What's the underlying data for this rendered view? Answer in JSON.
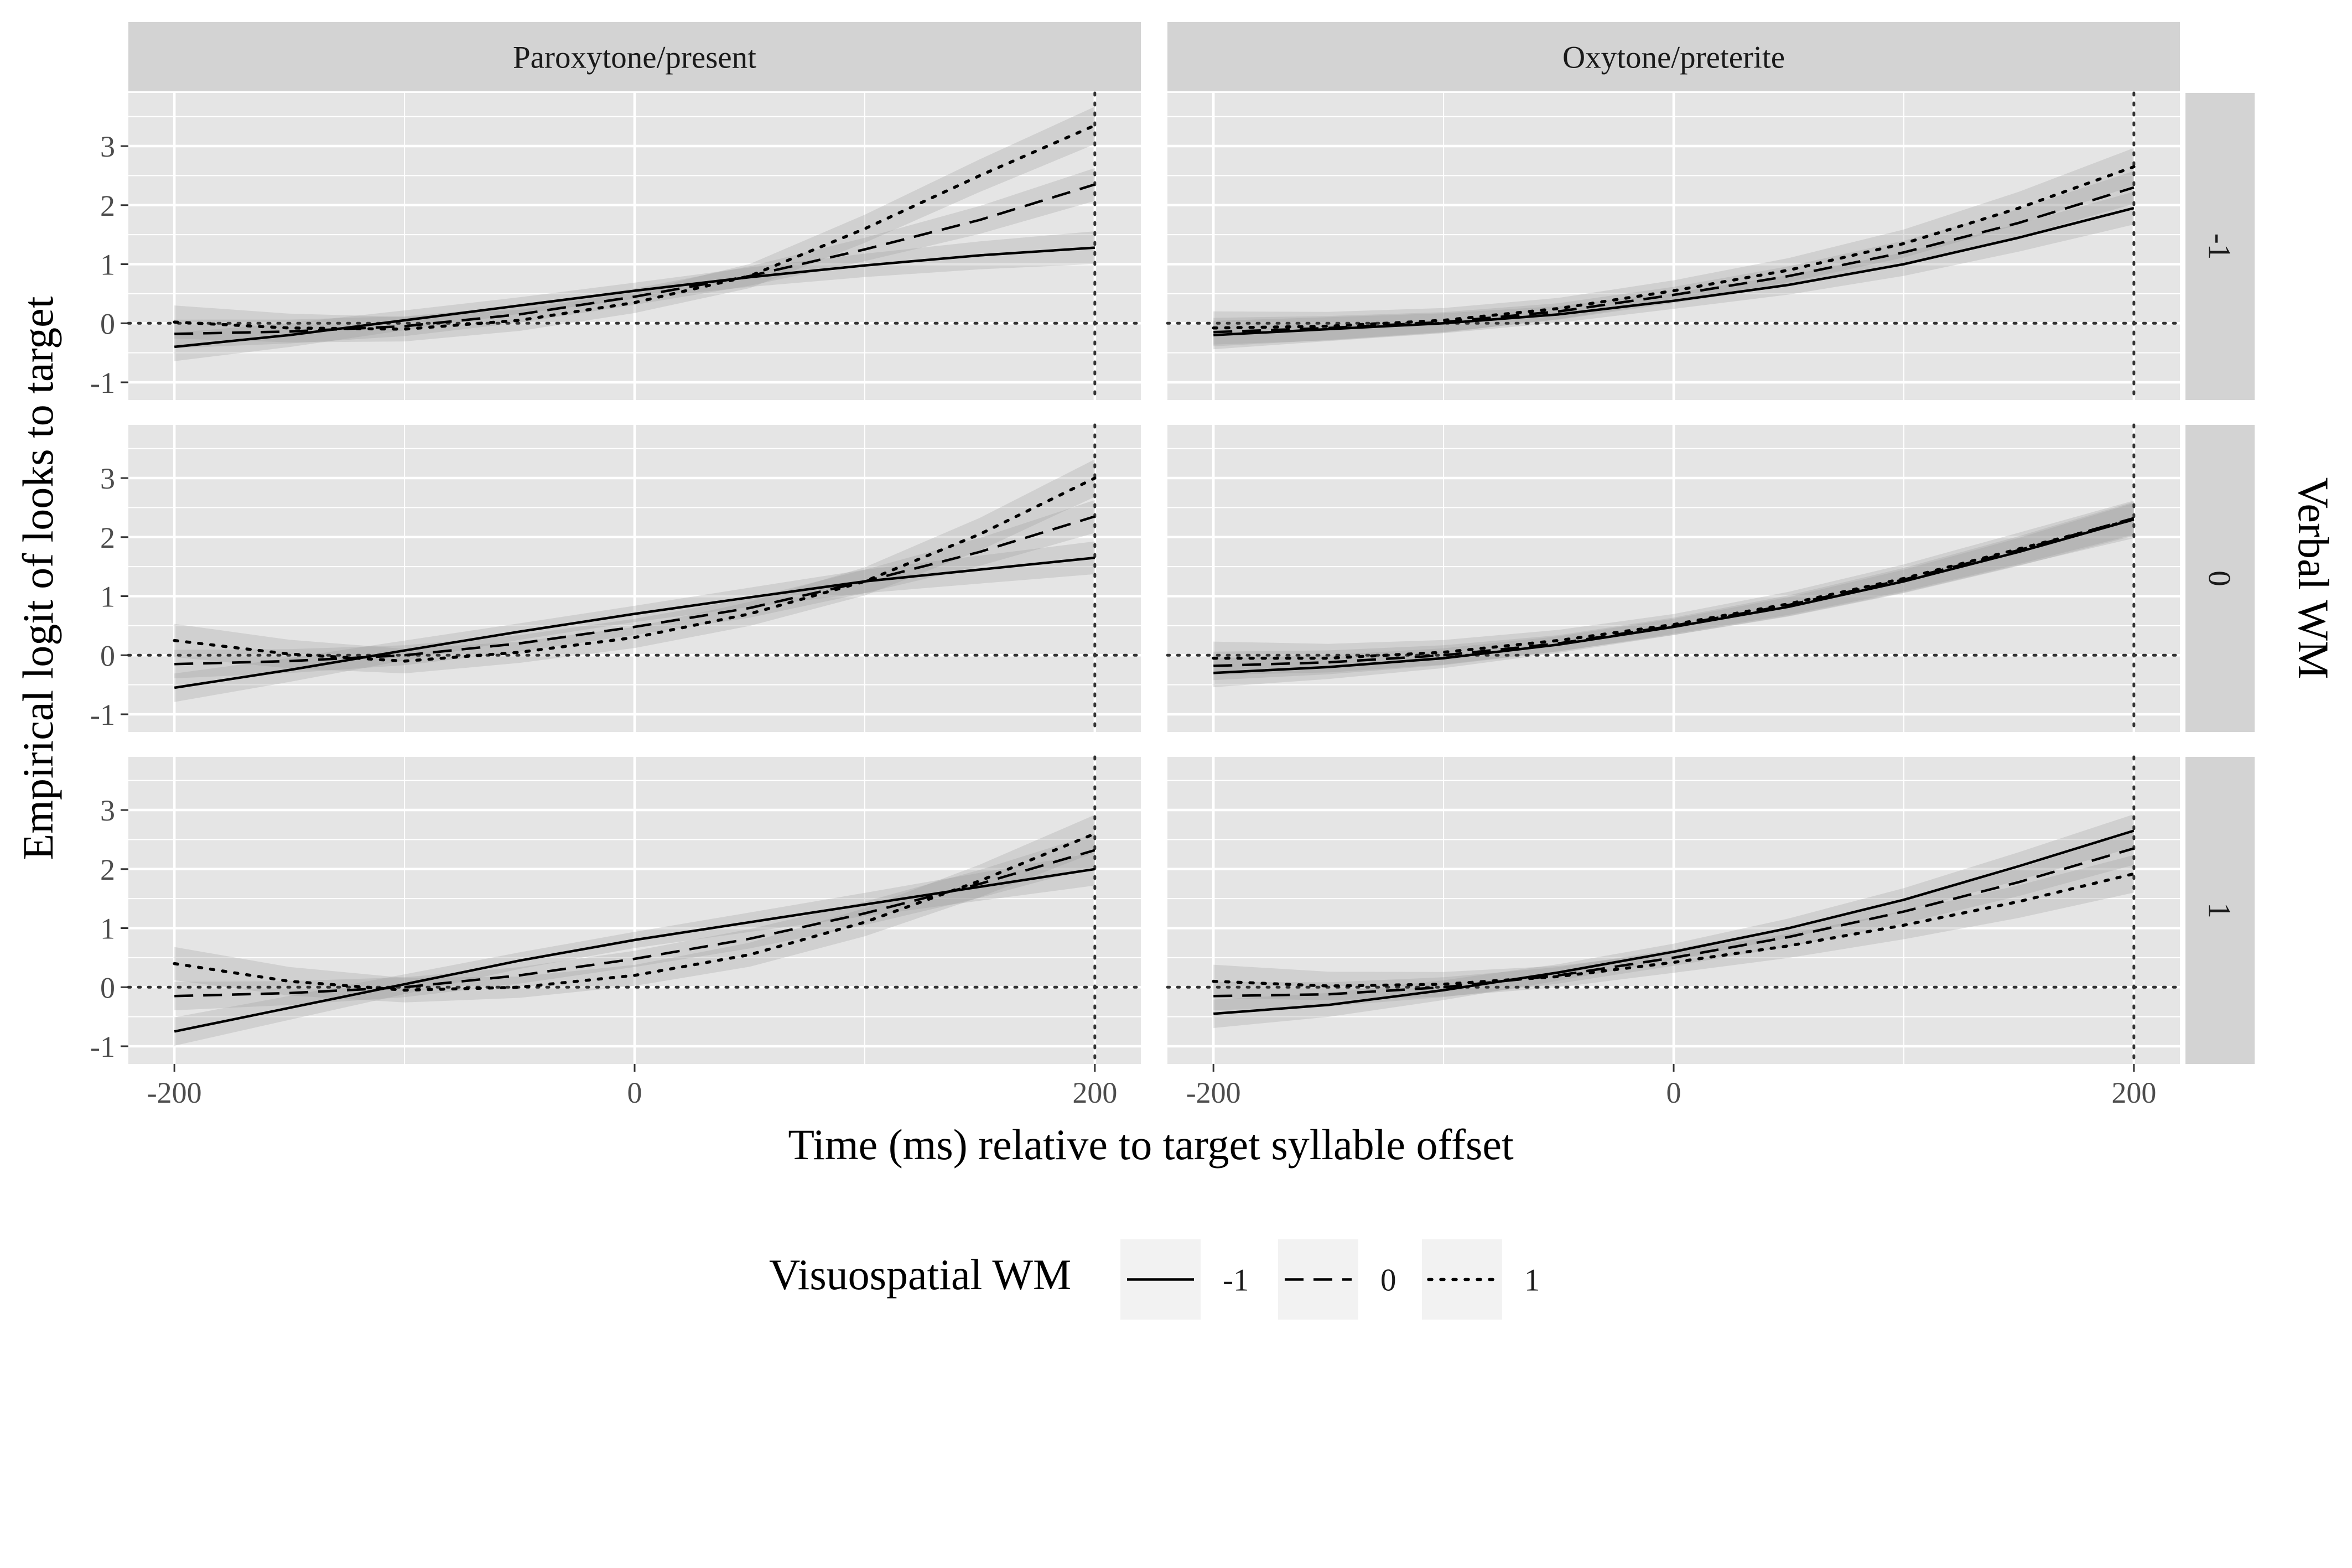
{
  "chart_data": {
    "type": "line",
    "xlabel": "Time (ms) relative to target syllable offset",
    "ylabel": "Empirical logit of looks to target",
    "xlim": [
      -220,
      220
    ],
    "ylim": [
      -1.3,
      3.9
    ],
    "x_ticks": [
      -200,
      0,
      200
    ],
    "x_tick_labels": [
      "-200",
      "0",
      "200"
    ],
    "y_ticks": [
      -1,
      0,
      1,
      2,
      3
    ],
    "y_tick_labels": [
      "-1",
      "0",
      "1",
      "2",
      "3"
    ],
    "facet_cols": [
      "Paroxytone/present",
      "Oxytone/preterite"
    ],
    "facet_rows": [
      "-1",
      "0",
      "1"
    ],
    "facet_row_title": "Verbal WM",
    "legend": {
      "title": "Visuospatial WM",
      "position": "bottom",
      "entries": [
        "-1",
        "0",
        "1"
      ],
      "linetypes": [
        "solid",
        "dashed",
        "dotted"
      ]
    },
    "reference_lines": {
      "hline_y": 0,
      "vline_x": 200
    },
    "grid": true,
    "colors": {
      "panel_bg": "#e5e5e5",
      "strip_bg": "#d3d3d3",
      "ribbon": "#9a9a9a",
      "line": "#000000",
      "grid_major": "#ffffff",
      "tick_text": "#4d4d4d"
    },
    "x": [
      -200,
      -150,
      -100,
      -50,
      0,
      50,
      100,
      150,
      200
    ],
    "panels": [
      {
        "col": "Paroxytone/present",
        "row": "-1",
        "series": [
          {
            "name": "-1",
            "values": [
              -0.4,
              -0.2,
              0.05,
              0.3,
              0.55,
              0.78,
              0.98,
              1.15,
              1.28
            ]
          },
          {
            "name": "0",
            "values": [
              -0.18,
              -0.14,
              -0.05,
              0.15,
              0.45,
              0.8,
              1.25,
              1.75,
              2.35
            ]
          },
          {
            "name": "1",
            "values": [
              0.02,
              -0.08,
              -0.1,
              0.05,
              0.35,
              0.8,
              1.6,
              2.5,
              3.35
            ]
          }
        ]
      },
      {
        "col": "Oxytone/preterite",
        "row": "-1",
        "series": [
          {
            "name": "-1",
            "values": [
              -0.2,
              -0.1,
              0.0,
              0.15,
              0.38,
              0.65,
              1.0,
              1.45,
              1.95
            ]
          },
          {
            "name": "0",
            "values": [
              -0.15,
              -0.08,
              0.02,
              0.2,
              0.48,
              0.8,
              1.2,
              1.7,
              2.3
            ]
          },
          {
            "name": "1",
            "values": [
              -0.08,
              -0.05,
              0.05,
              0.25,
              0.55,
              0.9,
              1.35,
              1.95,
              2.65
            ]
          }
        ]
      },
      {
        "col": "Paroxytone/present",
        "row": "0",
        "series": [
          {
            "name": "-1",
            "values": [
              -0.55,
              -0.25,
              0.08,
              0.4,
              0.7,
              0.98,
              1.25,
              1.45,
              1.65
            ]
          },
          {
            "name": "0",
            "values": [
              -0.15,
              -0.1,
              0.0,
              0.2,
              0.48,
              0.8,
              1.25,
              1.75,
              2.35
            ]
          },
          {
            "name": "1",
            "values": [
              0.25,
              0.02,
              -0.1,
              0.05,
              0.3,
              0.7,
              1.25,
              2.05,
              3.0
            ]
          }
        ]
      },
      {
        "col": "Oxytone/preterite",
        "row": "0",
        "series": [
          {
            "name": "-1",
            "values": [
              -0.3,
              -0.2,
              -0.05,
              0.18,
              0.48,
              0.82,
              1.25,
              1.75,
              2.3
            ]
          },
          {
            "name": "0",
            "values": [
              -0.18,
              -0.12,
              0.0,
              0.2,
              0.5,
              0.85,
              1.28,
              1.78,
              2.32
            ]
          },
          {
            "name": "1",
            "values": [
              -0.05,
              -0.05,
              0.05,
              0.25,
              0.52,
              0.87,
              1.3,
              1.8,
              2.3
            ]
          }
        ]
      },
      {
        "col": "Paroxytone/present",
        "row": "1",
        "series": [
          {
            "name": "-1",
            "values": [
              -0.75,
              -0.35,
              0.05,
              0.45,
              0.8,
              1.1,
              1.4,
              1.7,
              2.0
            ]
          },
          {
            "name": "0",
            "values": [
              -0.15,
              -0.1,
              0.0,
              0.2,
              0.48,
              0.82,
              1.25,
              1.75,
              2.32
            ]
          },
          {
            "name": "1",
            "values": [
              0.4,
              0.1,
              -0.05,
              0.0,
              0.2,
              0.55,
              1.1,
              1.8,
              2.6
            ]
          }
        ]
      },
      {
        "col": "Oxytone/preterite",
        "row": "1",
        "series": [
          {
            "name": "-1",
            "values": [
              -0.45,
              -0.3,
              -0.05,
              0.25,
              0.6,
              1.0,
              1.48,
              2.05,
              2.65
            ]
          },
          {
            "name": "0",
            "values": [
              -0.15,
              -0.12,
              0.0,
              0.2,
              0.5,
              0.85,
              1.28,
              1.78,
              2.35
            ]
          },
          {
            "name": "1",
            "values": [
              0.1,
              0.02,
              0.05,
              0.18,
              0.42,
              0.7,
              1.05,
              1.45,
              1.92
            ]
          }
        ]
      }
    ]
  }
}
